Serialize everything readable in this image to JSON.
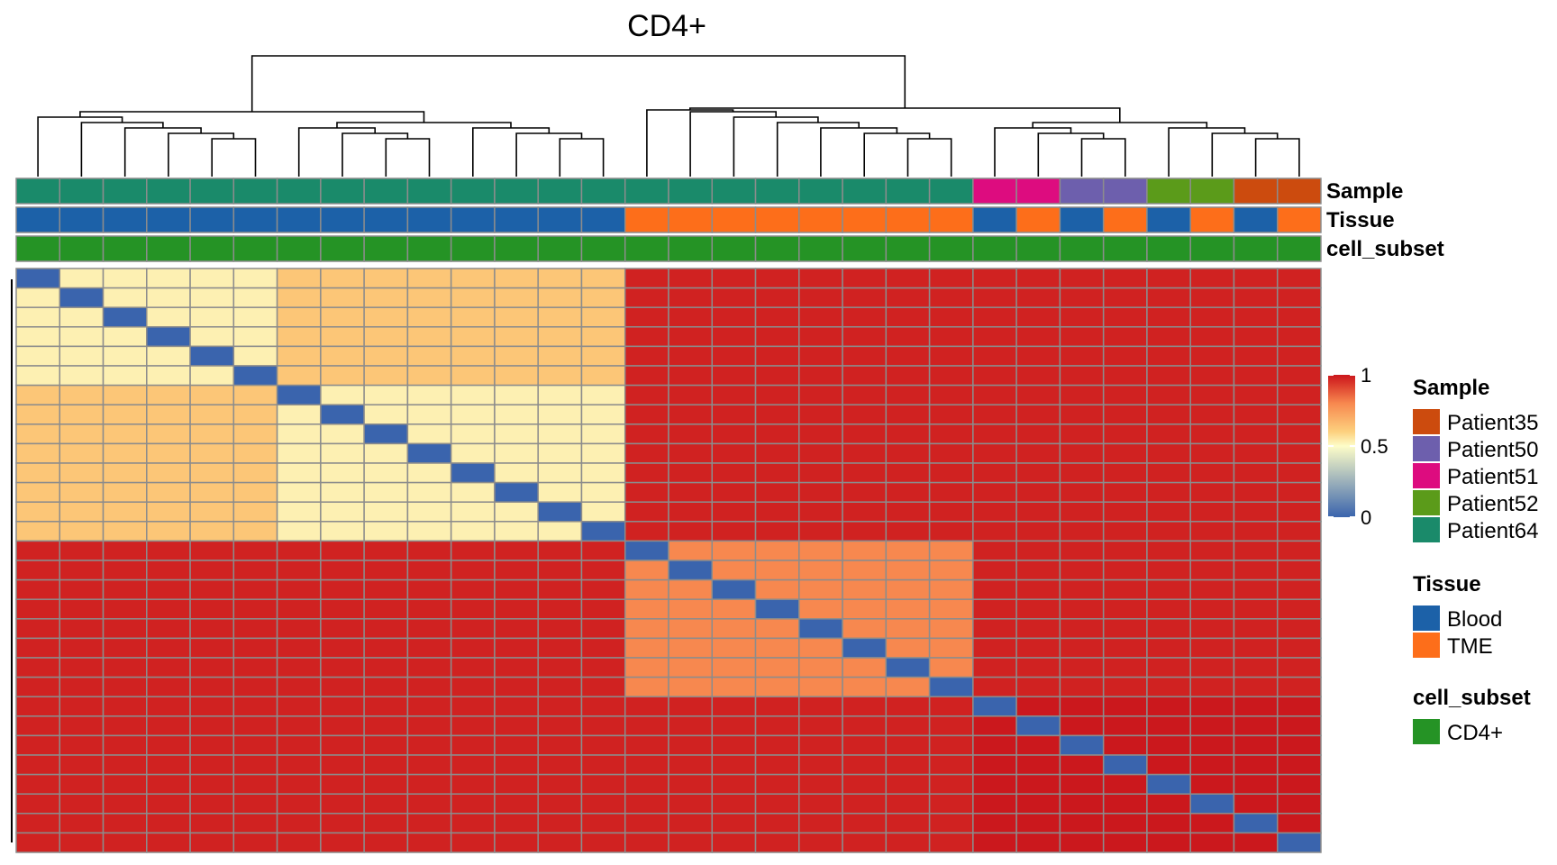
{
  "chart_data": {
    "type": "heatmap",
    "title": "CD4+",
    "n": 30,
    "colorbar": {
      "min": 0,
      "max": 1,
      "ticks": [
        0,
        0.5,
        1
      ],
      "tick_labels": [
        "0",
        "0.5",
        "1"
      ],
      "stops": [
        "#3a64ad",
        "#fdfdc8",
        "#fdd17e",
        "#f7884f",
        "#d73027",
        "#cb181d"
      ]
    },
    "matrix_blocks": [
      {
        "start": 0,
        "end": 14,
        "within_value": 0.55
      },
      {
        "start": 14,
        "end": 22,
        "within_value": 0.8
      },
      {
        "start": 22,
        "end": 30,
        "within_value": 1.0
      }
    ],
    "between_block_value": 0.98,
    "diagonal_value": 0.0,
    "annotation_rows": [
      {
        "label": "Sample",
        "values": [
          "Patient64",
          "Patient64",
          "Patient64",
          "Patient64",
          "Patient64",
          "Patient64",
          "Patient64",
          "Patient64",
          "Patient64",
          "Patient64",
          "Patient64",
          "Patient64",
          "Patient64",
          "Patient64",
          "Patient64",
          "Patient64",
          "Patient64",
          "Patient64",
          "Patient64",
          "Patient64",
          "Patient64",
          "Patient64",
          "Patient51",
          "Patient51",
          "Patient50",
          "Patient50",
          "Patient52",
          "Patient52",
          "Patient35",
          "Patient35"
        ]
      },
      {
        "label": "Tissue",
        "values": [
          "Blood",
          "Blood",
          "Blood",
          "Blood",
          "Blood",
          "Blood",
          "Blood",
          "Blood",
          "Blood",
          "Blood",
          "Blood",
          "Blood",
          "Blood",
          "Blood",
          "TME",
          "TME",
          "TME",
          "TME",
          "TME",
          "TME",
          "TME",
          "TME",
          "Blood",
          "TME",
          "Blood",
          "TME",
          "Blood",
          "TME",
          "Blood",
          "TME"
        ]
      },
      {
        "label": "cell_subset",
        "values": [
          "CD4+",
          "CD4+",
          "CD4+",
          "CD4+",
          "CD4+",
          "CD4+",
          "CD4+",
          "CD4+",
          "CD4+",
          "CD4+",
          "CD4+",
          "CD4+",
          "CD4+",
          "CD4+",
          "CD4+",
          "CD4+",
          "CD4+",
          "CD4+",
          "CD4+",
          "CD4+",
          "CD4+",
          "CD4+",
          "CD4+",
          "CD4+",
          "CD4+",
          "CD4+",
          "CD4+",
          "CD4+",
          "CD4+",
          "CD4+"
        ]
      }
    ],
    "legends": [
      {
        "title": "Sample",
        "entries": [
          {
            "label": "Patient35",
            "color": "#cc4b0e"
          },
          {
            "label": "Patient50",
            "color": "#6d5fad"
          },
          {
            "label": "Patient51",
            "color": "#dd0c7f"
          },
          {
            "label": "Patient52",
            "color": "#5b9b1a"
          },
          {
            "label": "Patient64",
            "color": "#1a8a6a"
          }
        ]
      },
      {
        "title": "Tissue",
        "entries": [
          {
            "label": "Blood",
            "color": "#1c61a8"
          },
          {
            "label": "TME",
            "color": "#fd6e1a"
          }
        ]
      },
      {
        "title": "cell_subset",
        "entries": [
          {
            "label": "CD4+",
            "color": "#259325"
          }
        ]
      }
    ]
  }
}
